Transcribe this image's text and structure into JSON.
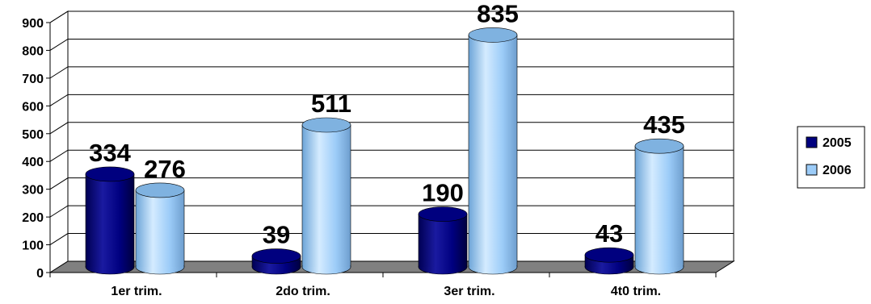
{
  "chart_data": {
    "type": "bar",
    "categories": [
      "1er trim.",
      "2do trim.",
      "3er trim.",
      "4t0 trim."
    ],
    "series": [
      {
        "name": "2005",
        "values": [
          334,
          39,
          190,
          43
        ]
      },
      {
        "name": "2006",
        "values": [
          276,
          511,
          835,
          435
        ]
      }
    ],
    "y_ticks": [
      "0",
      "100",
      "200",
      "300",
      "400",
      "500",
      "600",
      "700",
      "800",
      "900"
    ],
    "ylim": [
      0,
      900
    ],
    "grid": true,
    "legend": "right",
    "style": "3d-cylinder",
    "colors": {
      "series_2005": "#00007f",
      "series_2006": "#9cccf8",
      "floor": "#808080",
      "grid": "#000000"
    }
  }
}
